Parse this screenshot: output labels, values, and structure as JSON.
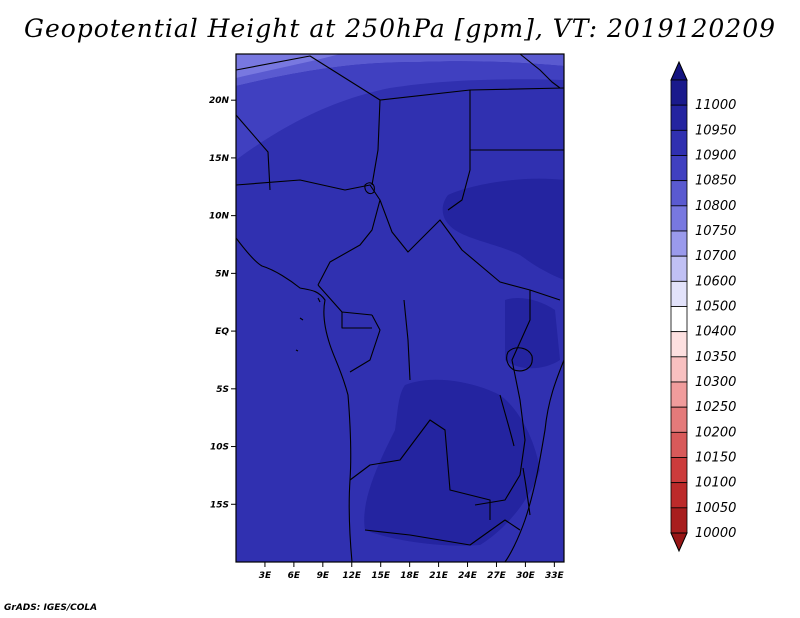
{
  "title": "Geopotential Height at 250hPa [gpm], VT: 2019120209",
  "credit": "GrADS: IGES/COLA",
  "map": {
    "lat_range": [
      -20,
      24
    ],
    "lon_range": [
      0,
      34
    ],
    "lat_ticks": [
      {
        "lat": 20,
        "label": "20N"
      },
      {
        "lat": 15,
        "label": "15N"
      },
      {
        "lat": 10,
        "label": "10N"
      },
      {
        "lat": 5,
        "label": "5N"
      },
      {
        "lat": 0,
        "label": "EQ"
      },
      {
        "lat": -5,
        "label": "5S"
      },
      {
        "lat": -10,
        "label": "10S"
      },
      {
        "lat": -15,
        "label": "15S"
      }
    ],
    "lon_ticks": [
      {
        "lon": 3,
        "label": "3E"
      },
      {
        "lon": 6,
        "label": "6E"
      },
      {
        "lon": 9,
        "label": "9E"
      },
      {
        "lon": 12,
        "label": "12E"
      },
      {
        "lon": 15,
        "label": "15E"
      },
      {
        "lon": 18,
        "label": "18E"
      },
      {
        "lon": 21,
        "label": "21E"
      },
      {
        "lon": 24,
        "label": "24E"
      },
      {
        "lon": 27,
        "label": "27E"
      },
      {
        "lon": 30,
        "label": "30E"
      },
      {
        "lon": 33,
        "label": "33E"
      }
    ],
    "base_color": "#3030b0"
  },
  "colorbar": {
    "levels": [
      {
        "label": "11000",
        "color": "#1a1a8c"
      },
      {
        "label": "10950",
        "color": "#2424a0"
      },
      {
        "label": "10900",
        "color": "#3030b0"
      },
      {
        "label": "10850",
        "color": "#4040c0"
      },
      {
        "label": "10800",
        "color": "#5a5ad0"
      },
      {
        "label": "10750",
        "color": "#7878e0"
      },
      {
        "label": "10700",
        "color": "#9a9aec"
      },
      {
        "label": "10600",
        "color": "#c0c0f4"
      },
      {
        "label": "10500",
        "color": "#e2e2fa"
      },
      {
        "label": "10400",
        "color": "#ffffff"
      },
      {
        "label": "10350",
        "color": "#fde0e0"
      },
      {
        "label": "10300",
        "color": "#f8c0c0"
      },
      {
        "label": "10250",
        "color": "#f09c9c"
      },
      {
        "label": "10200",
        "color": "#e47a7a"
      },
      {
        "label": "10150",
        "color": "#d85a5a"
      },
      {
        "label": "10100",
        "color": "#cc3c3c"
      },
      {
        "label": "10050",
        "color": "#bc2a2a"
      },
      {
        "label": "10000",
        "color": "#a81e1e"
      }
    ],
    "top_arrow_color": "#141480",
    "bottom_arrow_color": "#981616"
  }
}
